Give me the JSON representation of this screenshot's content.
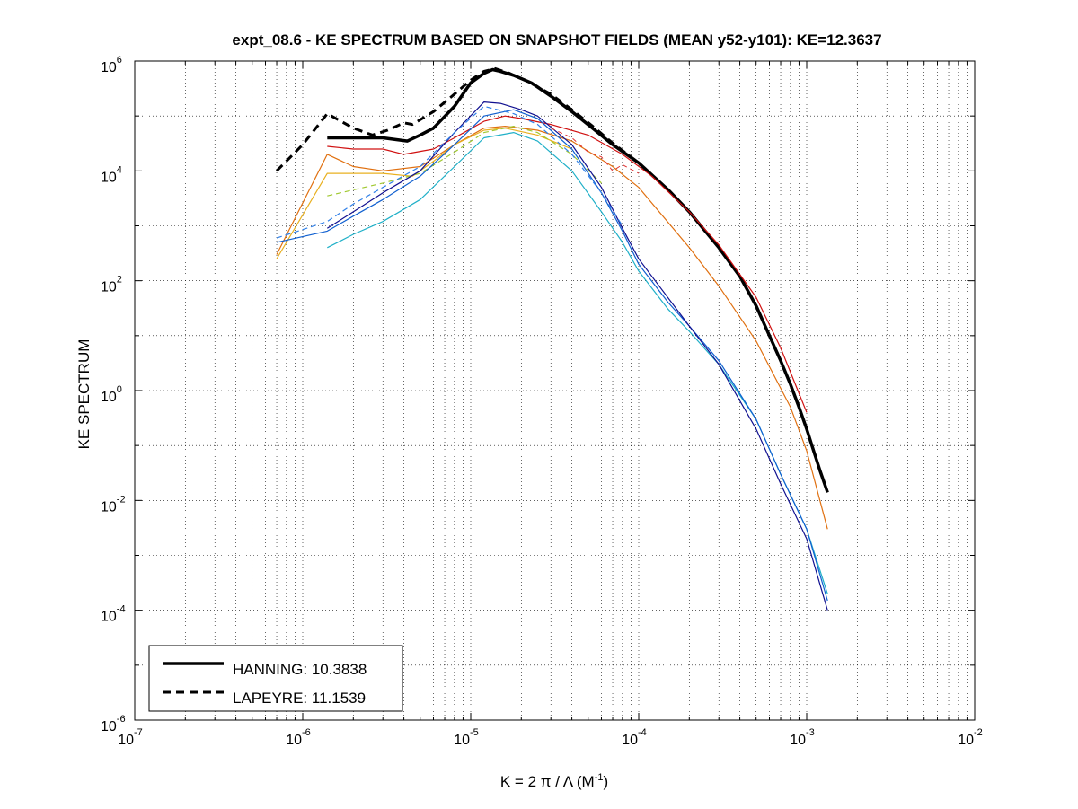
{
  "chart_data": {
    "type": "line",
    "title": "expt_08.6 - KE SPECTRUM BASED ON SNAPSHOT FIELDS (MEAN y52-y101): KE=12.3637",
    "xlabel": {
      "main": "K = 2 π / Λ  (M",
      "sup": "-1",
      "end": ")"
    },
    "ylabel": "KE SPECTRUM",
    "xscale": "log",
    "yscale": "log",
    "xlim": [
      1e-07,
      0.01
    ],
    "ylim": [
      1e-06,
      1000000.0
    ],
    "grid": true,
    "legend_position": "bottom-left",
    "x_ticks": [
      {
        "base": "10",
        "exp": "-7"
      },
      {
        "base": "10",
        "exp": "-6"
      },
      {
        "base": "10",
        "exp": "-5"
      },
      {
        "base": "10",
        "exp": "-4"
      },
      {
        "base": "10",
        "exp": "-3"
      },
      {
        "base": "10",
        "exp": "-2"
      }
    ],
    "y_ticks": [
      {
        "base": "10",
        "exp": "-6"
      },
      {
        "base": "10",
        "exp": "-4"
      },
      {
        "base": "10",
        "exp": "-2"
      },
      {
        "base": "10",
        "exp": "0"
      },
      {
        "base": "10",
        "exp": "2"
      },
      {
        "base": "10",
        "exp": "4"
      },
      {
        "base": "10",
        "exp": "6"
      }
    ],
    "legend": [
      {
        "label": "HANNING: 10.3838",
        "style": "solid"
      },
      {
        "label": "LAPEYRE: 11.1539",
        "style": "dashed"
      }
    ],
    "series": [
      {
        "name": "HANNING: 10.3838",
        "color": "#000000",
        "width": 3.5,
        "dash": "",
        "x": [
          1.4e-06,
          2e-06,
          3e-06,
          4.2e-06,
          5e-06,
          6e-06,
          8e-06,
          1e-05,
          1.2e-05,
          1.35e-05,
          1.5e-05,
          1.8e-05,
          2.3e-05,
          3e-05,
          4e-05,
          5.5e-05,
          7e-05,
          0.0001,
          0.00015,
          0.0002,
          0.0003,
          0.0004,
          0.0005,
          0.0006,
          0.0007,
          0.0008,
          0.0009,
          0.001,
          0.0011,
          0.0012,
          0.00133
        ],
        "y": [
          40000,
          40000,
          40000,
          35000,
          45000,
          60000,
          150000,
          400000,
          600000,
          700000,
          650000,
          550000,
          400000,
          230000,
          120000,
          55000,
          30000,
          14000,
          4500,
          1800,
          400,
          120,
          35,
          10,
          3.5,
          1.3,
          0.5,
          0.2,
          0.08,
          0.035,
          0.014
        ]
      },
      {
        "name": "LAPEYRE: 11.1539",
        "color": "#000000",
        "width": 3.0,
        "dash": "9,6",
        "x": [
          7e-07,
          1e-06,
          1.4e-06,
          2e-06,
          2.6e-06,
          3.2e-06,
          4e-06,
          4.5e-06,
          6e-06,
          8e-06,
          1e-05,
          1.2e-05,
          1.4e-05,
          1.7e-05,
          2.2e-05,
          3e-05,
          4e-05,
          5.5e-05,
          7e-05,
          0.0001,
          0.00015
        ],
        "y": [
          10000,
          30000,
          110000,
          60000,
          45000,
          55000,
          75000,
          70000,
          120000,
          250000,
          450000,
          650000,
          730000,
          600000,
          420000,
          250000,
          130000,
          60000,
          32000,
          14000,
          4500
        ]
      },
      {
        "name": "",
        "color": "#d01010",
        "width": 1.2,
        "dash": "",
        "x": [
          1.4e-06,
          2e-06,
          3e-06,
          4e-06,
          6e-06,
          8e-06,
          1.2e-05,
          1.6e-05,
          2e-05,
          3e-05,
          5e-05,
          8e-05,
          0.00012,
          0.0002,
          0.0003,
          0.0005,
          0.0007,
          0.001
        ],
        "y": [
          28000,
          25000,
          25000,
          20000,
          25000,
          40000,
          80000,
          100000,
          90000,
          70000,
          45000,
          20000,
          8000,
          1800,
          450,
          50,
          6,
          0.4
        ]
      },
      {
        "name": "",
        "color": "#e07010",
        "width": 1.2,
        "dash": "",
        "x": [
          7e-07,
          1.4e-06,
          2e-06,
          3e-06,
          5e-06,
          8e-06,
          1.2e-05,
          1.6e-05,
          2.5e-05,
          4e-05,
          7e-05,
          0.0001,
          0.0002,
          0.0003,
          0.0005,
          0.0008,
          0.001,
          0.00133
        ],
        "y": [
          300,
          20000,
          12000,
          10000,
          12000,
          30000,
          60000,
          65000,
          55000,
          35000,
          12000,
          5000,
          400,
          80,
          8,
          0.5,
          0.08,
          0.003
        ]
      },
      {
        "name": "",
        "color": "#e8b020",
        "width": 1.2,
        "dash": "",
        "x": [
          7e-07,
          1.4e-06,
          2e-06,
          3e-06,
          4.5e-06,
          6e-06,
          8e-06,
          1.2e-05,
          1.6e-05,
          2.5e-05,
          4e-05
        ],
        "y": [
          250,
          9000,
          9000,
          9000,
          8000,
          15000,
          30000,
          55000,
          60000,
          45000,
          25000
        ]
      },
      {
        "name": "",
        "color": "#a0c830",
        "width": 1.2,
        "dash": "6,4",
        "x": [
          1.4e-06,
          2e-06,
          3e-06,
          5e-06,
          8e-06,
          1.2e-05,
          1.8e-05,
          2.5e-05,
          4e-05,
          6e-05
        ],
        "y": [
          3500,
          4500,
          6000,
          9000,
          22000,
          50000,
          65000,
          50000,
          20000,
          6000
        ]
      },
      {
        "name": "",
        "color": "#20b0c8",
        "width": 1.2,
        "dash": "",
        "x": [
          1.4e-06,
          2e-06,
          3e-06,
          5e-06,
          8e-06,
          1.2e-05,
          1.8e-05,
          2.5e-05,
          4e-05,
          6e-05,
          8e-05,
          0.0001,
          0.00015,
          0.0002,
          0.0003,
          0.0005,
          0.0007,
          0.001,
          0.00133
        ],
        "y": [
          400,
          700,
          1200,
          3000,
          12000,
          40000,
          50000,
          35000,
          10000,
          1800,
          500,
          150,
          30,
          12,
          3,
          0.3,
          0.03,
          0.003,
          0.0002
        ]
      },
      {
        "name": "",
        "color": "#1060d0",
        "width": 1.2,
        "dash": "",
        "x": [
          7e-07,
          1.4e-06,
          2e-06,
          3e-06,
          5e-06,
          8e-06,
          1.2e-05,
          1.8e-05,
          2.5e-05,
          4e-05,
          6e-05,
          8e-05,
          0.0001,
          0.00015,
          0.0002,
          0.0003,
          0.0005,
          0.0007,
          0.001,
          0.00133
        ],
        "y": [
          500,
          800,
          1500,
          3000,
          8000,
          30000,
          100000,
          130000,
          90000,
          25000,
          4000,
          800,
          200,
          40,
          15,
          3.5,
          0.3,
          0.03,
          0.003,
          0.00015
        ]
      },
      {
        "name": "",
        "color": "#101090",
        "width": 1.2,
        "dash": "",
        "x": [
          1.4e-06,
          2e-06,
          3e-06,
          5e-06,
          8e-06,
          1.2e-05,
          1.5e-05,
          2e-05,
          2.5e-05,
          4e-05,
          6e-05,
          8e-05,
          0.0001,
          0.0002,
          0.0003,
          0.0005,
          0.0007,
          0.001,
          0.00133
        ],
        "y": [
          900,
          1800,
          4000,
          10000,
          50000,
          180000,
          170000,
          130000,
          100000,
          30000,
          5000,
          900,
          250,
          15,
          3,
          0.2,
          0.02,
          0.002,
          0.0001
        ]
      },
      {
        "name": "",
        "color": "#3080e8",
        "width": 1.2,
        "dash": "6,4",
        "x": [
          7e-07,
          1.4e-06,
          2e-06,
          3e-06,
          5e-06,
          8e-06,
          1.2e-05,
          1.8e-05,
          2.5e-05,
          4e-05,
          6e-05,
          8e-05
        ],
        "y": [
          600,
          1200,
          2500,
          5000,
          12000,
          50000,
          150000,
          110000,
          70000,
          20000,
          4000,
          1000
        ]
      },
      {
        "name": "",
        "color": "#e03030",
        "width": 1.0,
        "dash": "5,4",
        "x": [
          3e-05,
          4e-05,
          5e-05,
          6e-05,
          7e-05,
          8e-05,
          0.0001
        ],
        "y": [
          60000,
          40000,
          22000,
          18000,
          10000,
          13000,
          9000
        ]
      }
    ]
  }
}
